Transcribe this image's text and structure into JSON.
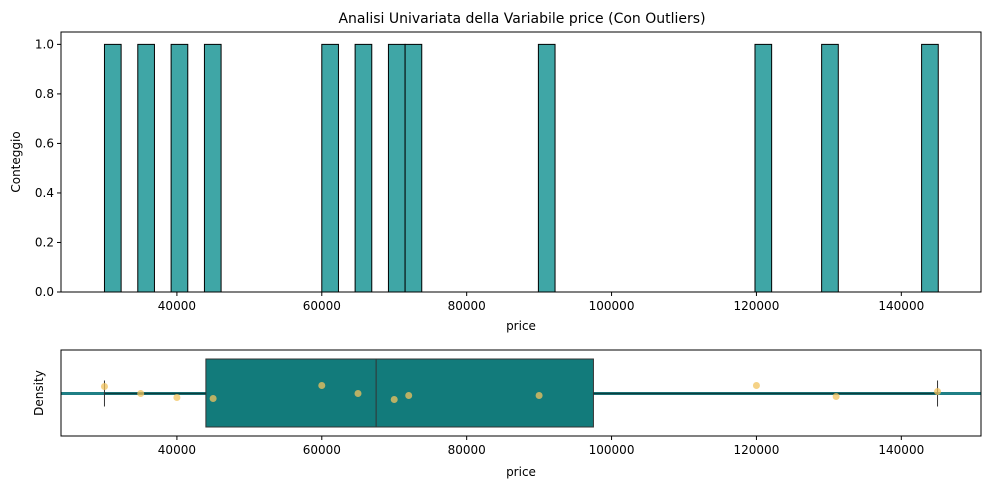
{
  "colors": {
    "bar_fill": "#3fa6a6",
    "bar_edge": "#000000",
    "box_fill": "#127b7b",
    "whisker": "#0b3d3d",
    "hline": "#1f7f85",
    "strip": "#f1c35d",
    "axes": "#000000"
  },
  "chart_data": [
    {
      "type": "bar",
      "name": "histogram",
      "title": "Analisi Univariata della Variabile price (Con Outliers)",
      "xlabel": "price",
      "ylabel": "Conteggio",
      "xlim": [
        24000,
        151000
      ],
      "ylim": [
        0,
        1.05
      ],
      "bin_width": 2300,
      "xticks": [
        40000,
        60000,
        80000,
        100000,
        120000,
        140000
      ],
      "yticks": [
        0.0,
        0.2,
        0.4,
        0.6,
        0.8,
        1.0
      ],
      "ytick_labels": [
        "0.0",
        "0.2",
        "0.4",
        "0.6",
        "0.8",
        "1.0"
      ],
      "bins": [
        {
          "start": 30000,
          "count": 1
        },
        {
          "start": 34600,
          "count": 1
        },
        {
          "start": 39200,
          "count": 1
        },
        {
          "start": 43800,
          "count": 1
        },
        {
          "start": 60000,
          "count": 1
        },
        {
          "start": 64600,
          "count": 1
        },
        {
          "start": 69200,
          "count": 1
        },
        {
          "start": 71500,
          "count": 1
        },
        {
          "start": 89900,
          "count": 1
        },
        {
          "start": 119800,
          "count": 1
        },
        {
          "start": 129000,
          "count": 1
        },
        {
          "start": 142800,
          "count": 1
        }
      ]
    },
    {
      "type": "box",
      "name": "boxplot",
      "xlabel": "price",
      "ylabel": "Density",
      "xlim": [
        24000,
        151000
      ],
      "xticks": [
        40000,
        60000,
        80000,
        100000,
        120000,
        140000
      ],
      "box": {
        "min": 30000,
        "q1": 44000,
        "median": 67500,
        "q3": 97500,
        "max": 145000
      },
      "strip_points": [
        {
          "x": 30000,
          "jitter": 0.35
        },
        {
          "x": 35000,
          "jitter": 0.0
        },
        {
          "x": 40000,
          "jitter": -0.2
        },
        {
          "x": 45000,
          "jitter": -0.25
        },
        {
          "x": 60000,
          "jitter": 0.4
        },
        {
          "x": 65000,
          "jitter": 0.0
        },
        {
          "x": 70000,
          "jitter": -0.3
        },
        {
          "x": 72000,
          "jitter": -0.1
        },
        {
          "x": 90000,
          "jitter": -0.1
        },
        {
          "x": 120000,
          "jitter": 0.4
        },
        {
          "x": 131000,
          "jitter": -0.15
        },
        {
          "x": 145000,
          "jitter": 0.1
        }
      ]
    }
  ]
}
